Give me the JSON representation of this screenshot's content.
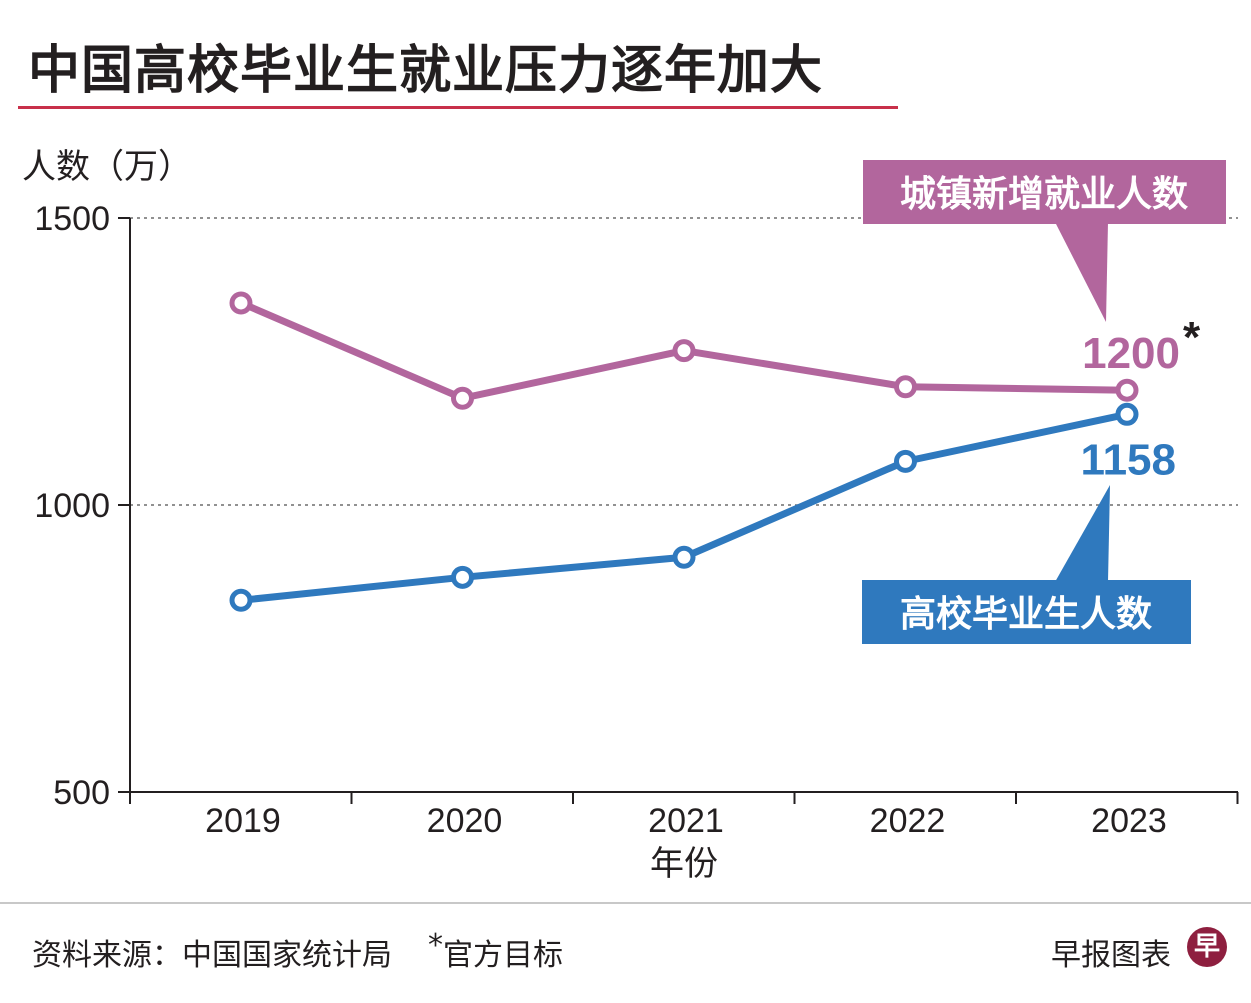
{
  "header": {
    "title": "中国高校毕业生就业压力逐年加大"
  },
  "footer": {
    "source": "资料来源：中国国家统计局",
    "footnote_star": "*",
    "footnote": "官方目标",
    "brand": "早报图表",
    "logo_glyph": "早"
  },
  "colors": {
    "title_rule": "#c8304a",
    "urban_series": "#b2669d",
    "grad_series": "#2f79be",
    "text": "#231f20",
    "logo": "#8e1f3f"
  },
  "chart_data": {
    "type": "line",
    "ylabel": "人数（万）",
    "xlabel": "年份",
    "ylim": [
      500,
      1500
    ],
    "yticks": [
      "500",
      "1000",
      "1500"
    ],
    "dashed_gridlines": [
      1000,
      1500
    ],
    "categories": [
      "2019",
      "2020",
      "2021",
      "2022",
      "2023"
    ],
    "series": [
      {
        "name": "城镇新增就业人数",
        "values": [
          1352,
          1186,
          1269,
          1206,
          1200
        ],
        "end_label": "1200",
        "end_mark": "*"
      },
      {
        "name": "高校毕业生人数",
        "values": [
          834,
          874,
          909,
          1076,
          1158
        ],
        "end_label": "1158",
        "end_mark": ""
      }
    ]
  }
}
